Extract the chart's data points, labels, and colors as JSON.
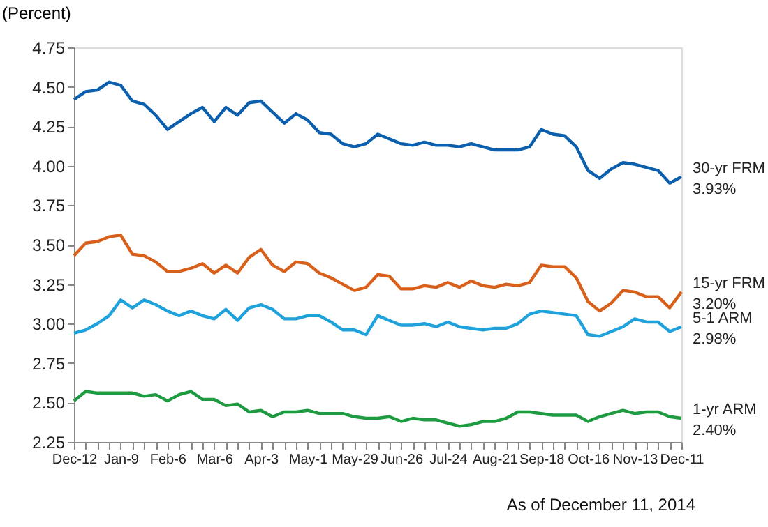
{
  "chart_data": {
    "type": "line",
    "ylabel": "(Percent)",
    "categories": [
      "Dec-12",
      null,
      null,
      null,
      "Jan-9",
      null,
      null,
      null,
      "Feb-6",
      null,
      null,
      null,
      "Mar-6",
      null,
      null,
      null,
      "Apr-3",
      null,
      null,
      null,
      "May-1",
      null,
      null,
      null,
      "May-29",
      null,
      null,
      null,
      "Jun-26",
      null,
      null,
      null,
      "Jul-24",
      null,
      null,
      null,
      "Aug-21",
      null,
      null,
      null,
      "Sep-18",
      null,
      null,
      null,
      "Oct-16",
      null,
      null,
      null,
      "Nov-13",
      null,
      null,
      null,
      "Dec-11"
    ],
    "series": [
      {
        "name": "30-yr FRM",
        "color": "#0b5fad",
        "values": [
          4.42,
          4.47,
          4.48,
          4.53,
          4.51,
          4.41,
          4.39,
          4.32,
          4.23,
          4.28,
          4.33,
          4.37,
          4.28,
          4.37,
          4.32,
          4.4,
          4.41,
          4.34,
          4.27,
          4.33,
          4.29,
          4.21,
          4.2,
          4.14,
          4.12,
          4.14,
          4.2,
          4.17,
          4.14,
          4.13,
          4.15,
          4.13,
          4.13,
          4.12,
          4.14,
          4.12,
          4.1,
          4.1,
          4.1,
          4.12,
          4.23,
          4.2,
          4.19,
          4.12,
          3.97,
          3.92,
          3.98,
          4.02,
          4.01,
          3.99,
          3.97,
          3.89,
          3.93
        ],
        "value_labels": [
          null,
          null,
          null,
          null,
          null,
          null,
          null,
          null,
          null,
          null,
          null,
          null,
          null,
          null,
          null,
          null,
          null,
          null,
          null,
          null,
          null,
          null,
          null,
          null,
          null,
          null,
          null,
          null,
          null,
          null,
          null,
          null,
          null,
          null,
          null,
          null,
          null,
          null,
          null,
          null,
          null,
          null,
          null,
          null,
          null,
          null,
          null,
          null,
          null,
          null,
          null,
          null,
          "3.93%"
        ]
      },
      {
        "name": "15-yr FRM",
        "color": "#d9601a",
        "values": [
          3.43,
          3.51,
          3.52,
          3.55,
          3.56,
          3.44,
          3.43,
          3.39,
          3.33,
          3.33,
          3.35,
          3.38,
          3.32,
          3.37,
          3.32,
          3.42,
          3.47,
          3.37,
          3.33,
          3.39,
          3.38,
          3.32,
          3.29,
          3.25,
          3.21,
          3.23,
          3.31,
          3.3,
          3.22,
          3.22,
          3.24,
          3.23,
          3.26,
          3.23,
          3.27,
          3.24,
          3.23,
          3.25,
          3.24,
          3.26,
          3.37,
          3.36,
          3.36,
          3.29,
          3.14,
          3.08,
          3.13,
          3.21,
          3.2,
          3.17,
          3.17,
          3.1,
          3.2
        ],
        "value_labels": [
          null,
          null,
          null,
          null,
          null,
          null,
          null,
          null,
          null,
          null,
          null,
          null,
          null,
          null,
          null,
          null,
          null,
          null,
          null,
          null,
          null,
          null,
          null,
          null,
          null,
          null,
          null,
          null,
          null,
          null,
          null,
          null,
          null,
          null,
          null,
          null,
          null,
          null,
          null,
          null,
          null,
          null,
          null,
          null,
          null,
          null,
          null,
          null,
          null,
          null,
          null,
          null,
          "3.20%"
        ]
      },
      {
        "name": "5-1 ARM",
        "color": "#1fa2dc",
        "values": [
          2.94,
          2.96,
          3.0,
          3.05,
          3.15,
          3.1,
          3.15,
          3.12,
          3.08,
          3.05,
          3.08,
          3.05,
          3.03,
          3.09,
          3.02,
          3.1,
          3.12,
          3.09,
          3.03,
          3.03,
          3.05,
          3.05,
          3.01,
          2.96,
          2.96,
          2.93,
          3.05,
          3.02,
          2.99,
          2.99,
          3.0,
          2.98,
          3.01,
          2.98,
          2.97,
          2.96,
          2.97,
          2.97,
          3.0,
          3.06,
          3.08,
          3.07,
          3.06,
          3.05,
          2.93,
          2.92,
          2.95,
          2.98,
          3.03,
          3.01,
          3.01,
          2.95,
          2.98
        ],
        "value_labels": [
          null,
          null,
          null,
          null,
          null,
          null,
          null,
          null,
          null,
          null,
          null,
          null,
          null,
          null,
          null,
          null,
          null,
          null,
          null,
          null,
          null,
          null,
          null,
          null,
          null,
          null,
          null,
          null,
          null,
          null,
          null,
          null,
          null,
          null,
          null,
          null,
          null,
          null,
          null,
          null,
          null,
          null,
          null,
          null,
          null,
          null,
          null,
          null,
          null,
          null,
          null,
          null,
          "2.98%"
        ]
      },
      {
        "name": "1-yr ARM",
        "color": "#1e9a41",
        "values": [
          2.51,
          2.57,
          2.56,
          2.56,
          2.56,
          2.56,
          2.54,
          2.55,
          2.51,
          2.55,
          2.57,
          2.52,
          2.52,
          2.48,
          2.49,
          2.44,
          2.45,
          2.41,
          2.44,
          2.44,
          2.45,
          2.43,
          2.43,
          2.43,
          2.41,
          2.4,
          2.4,
          2.41,
          2.38,
          2.4,
          2.39,
          2.39,
          2.37,
          2.35,
          2.36,
          2.38,
          2.38,
          2.4,
          2.44,
          2.44,
          2.43,
          2.42,
          2.42,
          2.42,
          2.38,
          2.41,
          2.43,
          2.45,
          2.43,
          2.44,
          2.44,
          2.41,
          2.4
        ],
        "value_labels": [
          null,
          null,
          null,
          null,
          null,
          null,
          null,
          null,
          null,
          null,
          null,
          null,
          null,
          null,
          null,
          null,
          null,
          null,
          null,
          null,
          null,
          null,
          null,
          null,
          null,
          null,
          null,
          null,
          null,
          null,
          null,
          null,
          null,
          null,
          null,
          null,
          null,
          null,
          null,
          null,
          null,
          null,
          null,
          null,
          null,
          null,
          null,
          null,
          null,
          null,
          null,
          null,
          "2.40%"
        ]
      }
    ],
    "ylim": [
      2.25,
      4.75
    ],
    "yticks": [
      2.25,
      {
        "value": 2.5,
        "label": "2.50"
      },
      2.75,
      {
        "value": 3.0,
        "label": "3.00"
      },
      3.25,
      {
        "value": 3.5,
        "label": "3.50"
      },
      3.75,
      {
        "value": 4.0,
        "label": "4.00"
      },
      4.25,
      {
        "value": 4.5,
        "label": "4.50"
      },
      4.75
    ],
    "grid": false,
    "legend": false,
    "annotations": [
      "As of December 11, 2014"
    ]
  }
}
